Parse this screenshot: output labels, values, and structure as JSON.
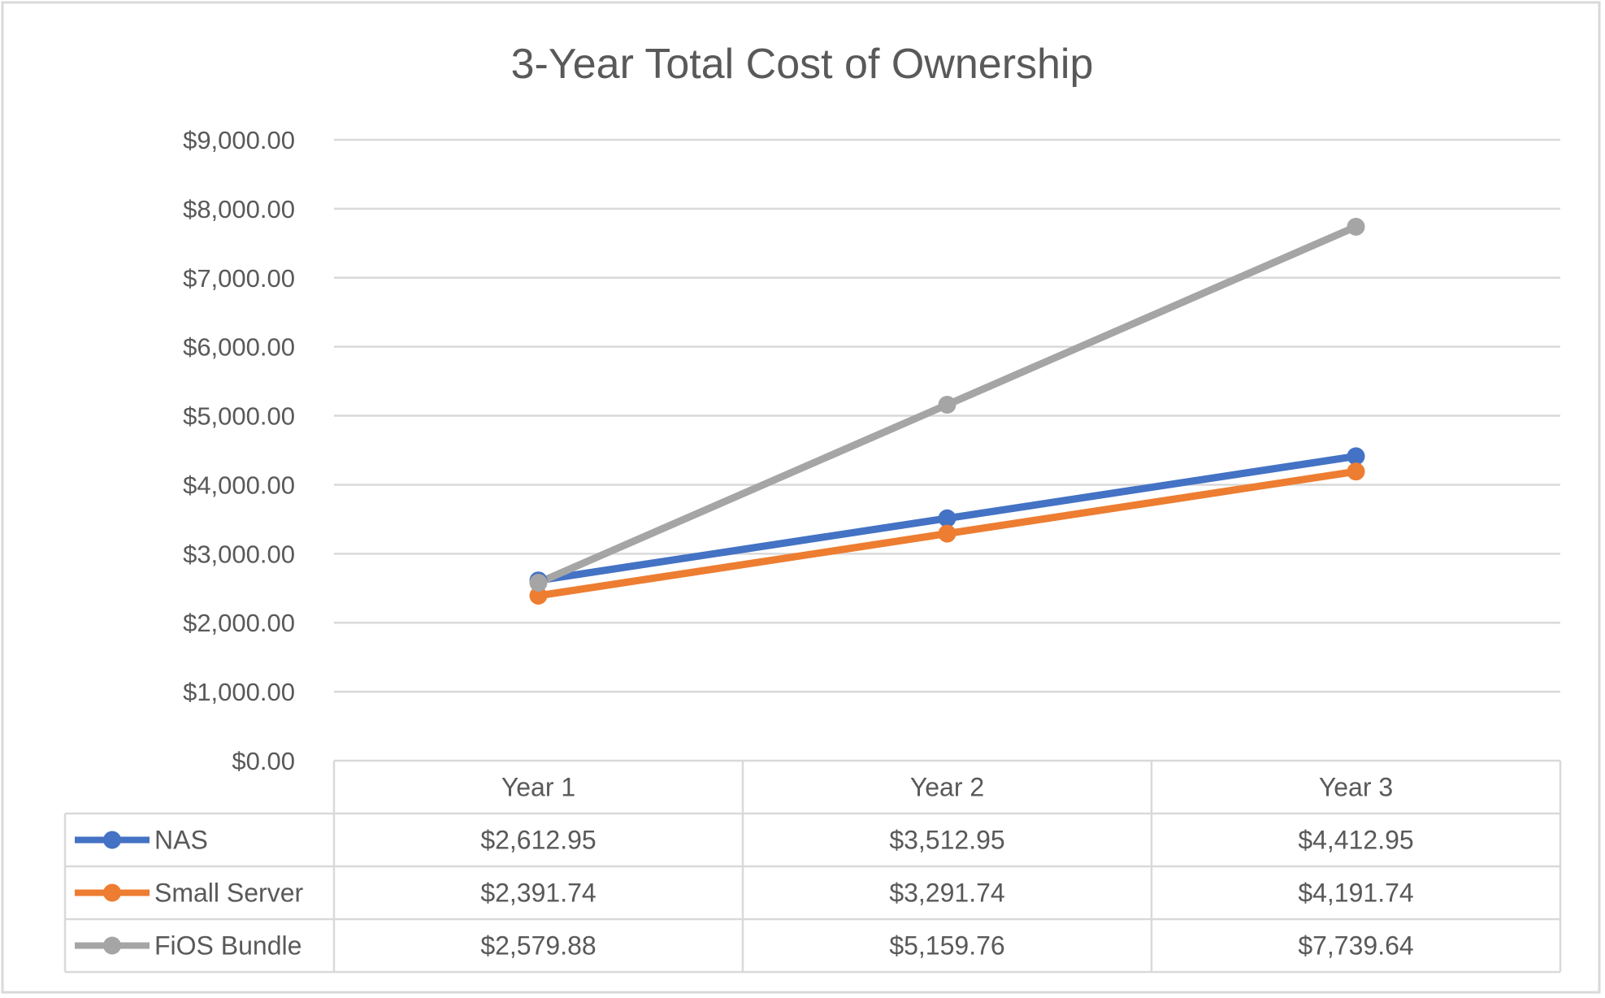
{
  "chart_data": {
    "type": "line",
    "title": "3-Year Total Cost of Ownership",
    "categories": [
      "Year 1",
      "Year 2",
      "Year 3"
    ],
    "ylim": [
      0,
      9000
    ],
    "yticks": [
      0,
      1000,
      2000,
      3000,
      4000,
      5000,
      6000,
      7000,
      8000,
      9000
    ],
    "ytick_labels": [
      "$0.00",
      "$1,000.00",
      "$2,000.00",
      "$3,000.00",
      "$4,000.00",
      "$5,000.00",
      "$6,000.00",
      "$7,000.00",
      "$8,000.00",
      "$9,000.00"
    ],
    "grid": true,
    "legend": "data-table",
    "series": [
      {
        "name": "NAS",
        "color": "#4472C4",
        "values": [
          2612.95,
          3512.95,
          4412.95
        ],
        "labels": [
          "$2,612.95",
          "$3,512.95",
          "$4,412.95"
        ]
      },
      {
        "name": "Small Server",
        "color": "#ED7D31",
        "values": [
          2391.74,
          3291.74,
          4191.74
        ],
        "labels": [
          "$2,391.74",
          "$3,291.74",
          "$4,191.74"
        ]
      },
      {
        "name": "FiOS Bundle",
        "color": "#A5A5A5",
        "values": [
          2579.88,
          5159.76,
          7739.64
        ],
        "labels": [
          "$2,579.88",
          "$5,159.76",
          "$7,739.64"
        ]
      }
    ]
  }
}
